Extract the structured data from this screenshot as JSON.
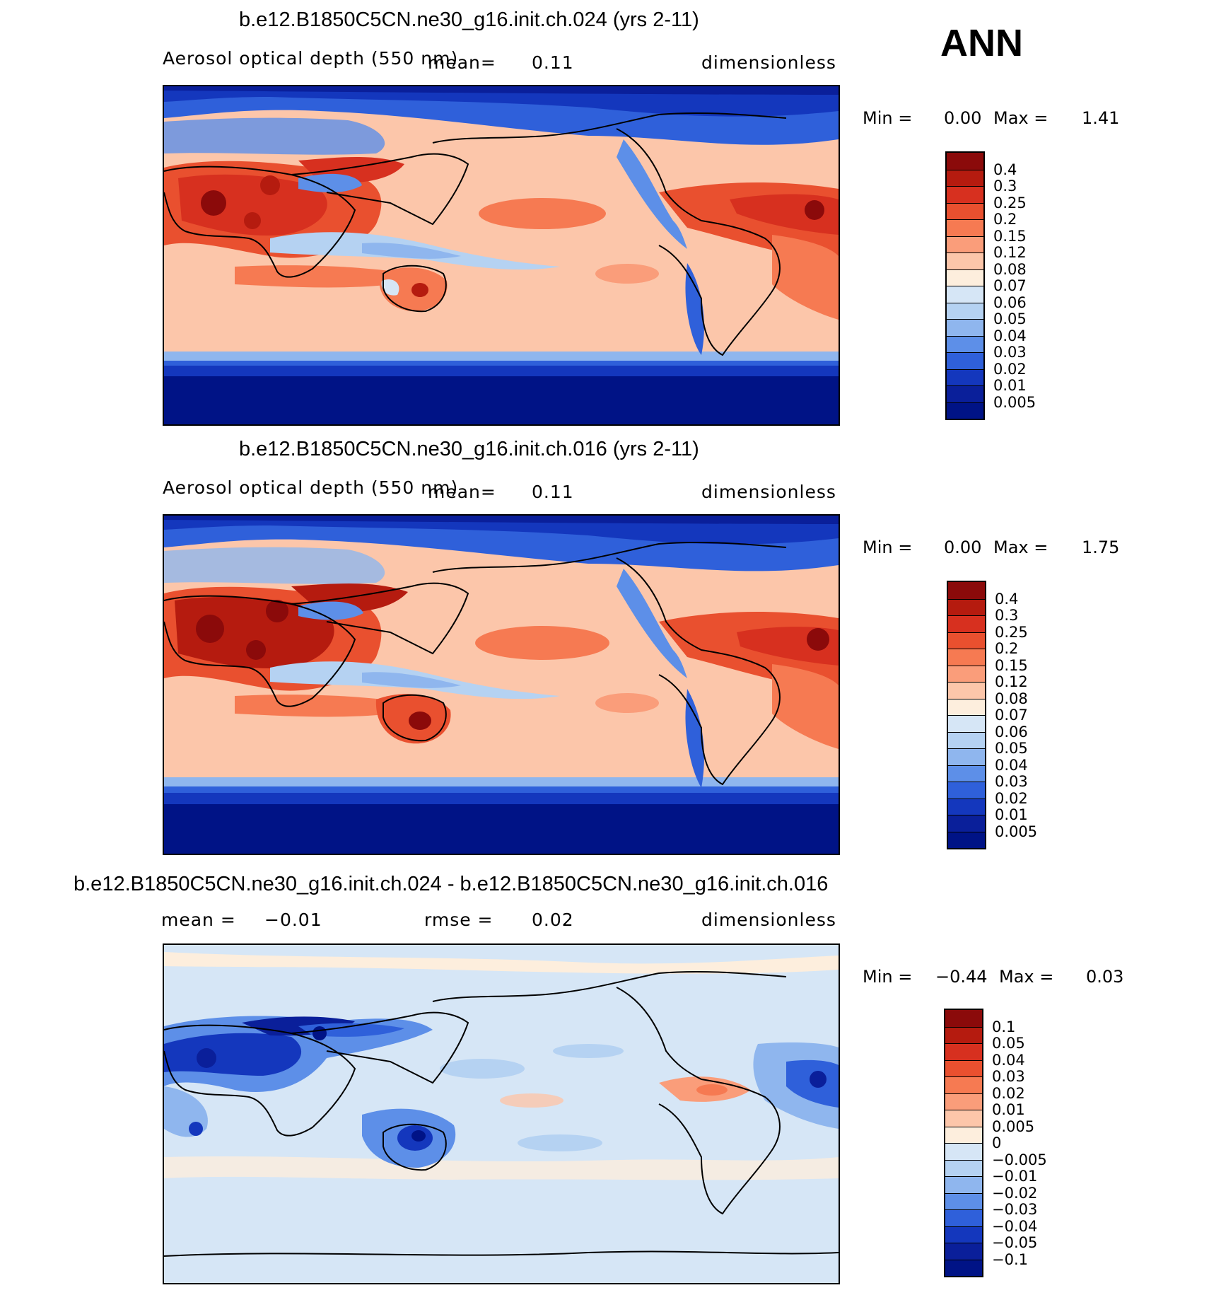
{
  "season": "ANN",
  "panels": [
    {
      "title": "b.e12.B1850C5CN.ne30_g16.init.ch.024 (yrs 2-11)",
      "variable": "Aerosol optical depth (550 nm)",
      "mean_label": "mean=",
      "mean_value": "0.11",
      "units": "dimensionless",
      "min_label": "Min =",
      "min_value": "0.00",
      "max_label": "Max =",
      "max_value": "1.41",
      "colorbar": [
        "0.4",
        "0.3",
        "0.25",
        "0.2",
        "0.15",
        "0.12",
        "0.08",
        "0.07",
        "0.06",
        "0.05",
        "0.04",
        "0.03",
        "0.02",
        "0.01",
        "0.005"
      ]
    },
    {
      "title": "b.e12.B1850C5CN.ne30_g16.init.ch.016 (yrs 2-11)",
      "variable": "Aerosol optical depth (550 nm)",
      "mean_label": "mean=",
      "mean_value": "0.11",
      "units": "dimensionless",
      "min_label": "Min =",
      "min_value": "0.00",
      "max_label": "Max =",
      "max_value": "1.75",
      "colorbar": [
        "0.4",
        "0.3",
        "0.25",
        "0.2",
        "0.15",
        "0.12",
        "0.08",
        "0.07",
        "0.06",
        "0.05",
        "0.04",
        "0.03",
        "0.02",
        "0.01",
        "0.005"
      ]
    },
    {
      "title": "b.e12.B1850C5CN.ne30_g16.init.ch.024 - b.e12.B1850C5CN.ne30_g16.init.ch.016",
      "mean_label": "mean =",
      "mean_value": "−0.01",
      "rmse_label": "rmse =",
      "rmse_value": "0.02",
      "units": "dimensionless",
      "min_label": "Min =",
      "min_value": "−0.44",
      "max_label": "Max =",
      "max_value": "0.03",
      "colorbar": [
        "0.1",
        "0.05",
        "0.04",
        "0.03",
        "0.02",
        "0.01",
        "0.005",
        "0",
        "−0.005",
        "−0.01",
        "−0.02",
        "−0.03",
        "−0.04",
        "−0.05",
        "−0.1"
      ]
    }
  ],
  "colors": {
    "abs_scale": [
      "#8b0a0a",
      "#b51b0f",
      "#d7301f",
      "#e9502f",
      "#f67a52",
      "#fa9d7a",
      "#fcc6aa",
      "#fdeedd",
      "#d6e6f6",
      "#b5d2f2",
      "#8fb6ee",
      "#5d8fe8",
      "#2f60da",
      "#1437bd",
      "#0a1f9a",
      "#001386"
    ],
    "diff_scale": [
      "#8b0a0a",
      "#b51b0f",
      "#d7301f",
      "#e9502f",
      "#f67a52",
      "#fa9d7a",
      "#fcc6aa",
      "#fdeedd",
      "#d6e6f6",
      "#b5d2f2",
      "#8fb6ee",
      "#5d8fe8",
      "#2f60da",
      "#1437bd",
      "#0a1f9a",
      "#001386"
    ]
  }
}
